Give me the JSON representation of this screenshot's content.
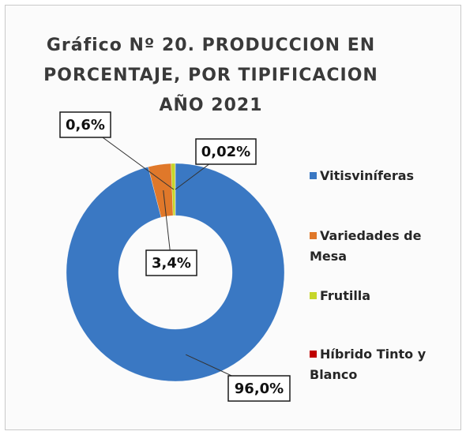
{
  "chart_data": {
    "type": "donut",
    "title": "Gráfico Nº 20. PRODUCCION EN PORCENTAJE, POR TIPIFICACION AÑO 2021",
    "categories": [
      "Vitisviníferas",
      "Variedades de Mesa",
      "Frutilla",
      "Híbrido Tinto y Blanco"
    ],
    "values": [
      96.0,
      3.4,
      0.6,
      0.02
    ],
    "value_labels": [
      "96,0%",
      "3,4%",
      "0,6%",
      "0,02%"
    ],
    "colors": [
      "#3a78c3",
      "#e0782a",
      "#c6d62a",
      "#c00000"
    ],
    "legend": "right"
  }
}
